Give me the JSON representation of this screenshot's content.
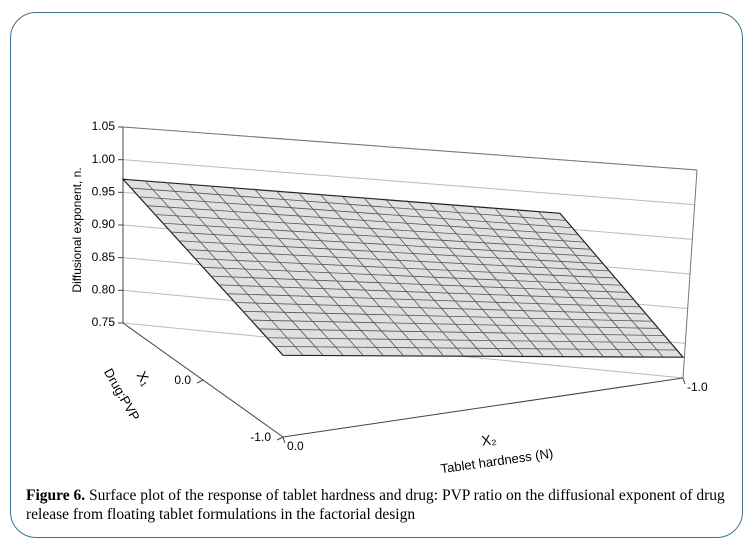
{
  "chart_data": {
    "type": "surface",
    "zlabel": "Diffusional exponent, n.",
    "x1label": "X₁",
    "x1name": "Drug:PVP",
    "x2label": "X₂",
    "x2name": "Tablet hardness (N)",
    "x1lim": [
      -1,
      1
    ],
    "x2lim": [
      0,
      -1
    ],
    "zlim": [
      0.75,
      1.05
    ],
    "x1ticks": [
      {
        "value": 0,
        "label": "0.0"
      },
      {
        "value": -1,
        "label": "-1.0"
      }
    ],
    "x2ticks": [
      {
        "value": 0,
        "label": "0.0"
      },
      {
        "value": -1,
        "label": "-1.0"
      }
    ],
    "zticks": [
      {
        "value": 0.75,
        "label": "0.75"
      },
      {
        "value": 0.8,
        "label": "0.80"
      },
      {
        "value": 0.85,
        "label": "0.85"
      },
      {
        "value": 0.9,
        "label": "0.90"
      },
      {
        "value": 0.95,
        "label": "0.95"
      },
      {
        "value": 1.0,
        "label": "1.00"
      },
      {
        "value": 1.05,
        "label": "1.05"
      }
    ],
    "x1": [
      -1,
      1
    ],
    "x2": [
      0,
      -1
    ],
    "z": [
      [
        0.875,
        0.78
      ],
      [
        0.97,
        0.875
      ]
    ],
    "color": "#e0e0e0",
    "grid": true
  },
  "caption": {
    "label": "Figure 6.",
    "text": "Surface plot of the response of tablet hardness and drug: PVP ratio on the diffusional exponent of drug release from floating tablet formulations in the factorial design"
  }
}
